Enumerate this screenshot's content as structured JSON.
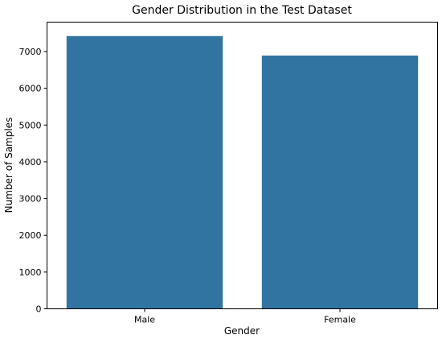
{
  "chart_data": {
    "type": "bar",
    "title": "Gender Distribution in the Test Dataset",
    "xlabel": "Gender",
    "ylabel": "Number of Samples",
    "categories": [
      "Male",
      "Female"
    ],
    "values": [
      7420,
      6890
    ],
    "ylim": [
      0,
      7800
    ],
    "yticks": [
      0,
      1000,
      2000,
      3000,
      4000,
      5000,
      6000,
      7000
    ],
    "bar_color": "#3274a1",
    "grid": false,
    "legend": "none"
  }
}
